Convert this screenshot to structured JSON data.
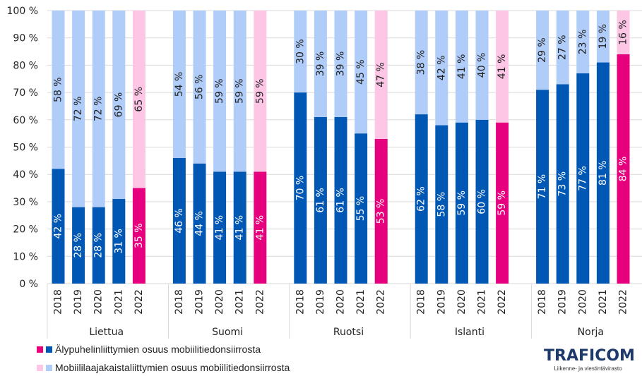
{
  "chart_data": {
    "type": "bar",
    "stacked": true,
    "ylim": [
      0,
      100
    ],
    "y_ticks": [
      "0 %",
      "10 %",
      "20 %",
      "30 %",
      "40 %",
      "50 %",
      "60 %",
      "70 %",
      "80 %",
      "90 %",
      "100 %"
    ],
    "grid": true,
    "legend_position": "bottom-left",
    "groups": [
      {
        "name": "Liettua",
        "years": [
          "2018",
          "2019",
          "2020",
          "2021",
          "2022"
        ],
        "smartphone": [
          42,
          28,
          28,
          31,
          35
        ],
        "broadband": [
          58,
          72,
          72,
          69,
          65
        ]
      },
      {
        "name": "Suomi",
        "years": [
          "2018",
          "2019",
          "2020",
          "2021",
          "2022"
        ],
        "smartphone": [
          46,
          44,
          41,
          41,
          41
        ],
        "broadband": [
          54,
          56,
          59,
          59,
          59
        ]
      },
      {
        "name": "Ruotsi",
        "years": [
          "2018",
          "2019",
          "2020",
          "2021",
          "2022"
        ],
        "smartphone": [
          70,
          61,
          61,
          55,
          53
        ],
        "broadband": [
          30,
          39,
          39,
          45,
          47
        ]
      },
      {
        "name": "Islanti",
        "years": [
          "2018",
          "2019",
          "2020",
          "2021",
          "2022"
        ],
        "smartphone": [
          62,
          58,
          59,
          60,
          59
        ],
        "broadband": [
          38,
          42,
          41,
          40,
          41
        ]
      },
      {
        "name": "Norja",
        "years": [
          "2018",
          "2019",
          "2020",
          "2021",
          "2022"
        ],
        "smartphone": [
          71,
          73,
          77,
          81,
          84
        ],
        "broadband": [
          29,
          27,
          23,
          19,
          16
        ]
      }
    ],
    "series": [
      {
        "name": "Älypuhelinliittymien osuus mobiilitiedonsiirrosta",
        "color": "#0057B4",
        "highlight_color": "#E6007E"
      },
      {
        "name": "Mobiililaajakaistaliittymien osuus mobiilitiedonsiirrosta",
        "color": "#B0CCF8",
        "highlight_color": "#FCC6E4"
      }
    ],
    "highlight_year": "2022",
    "label_suffix": " %"
  },
  "logo": {
    "text": "TRAFICOM",
    "subtitle": "Liikenne- ja viestintävirasto"
  }
}
